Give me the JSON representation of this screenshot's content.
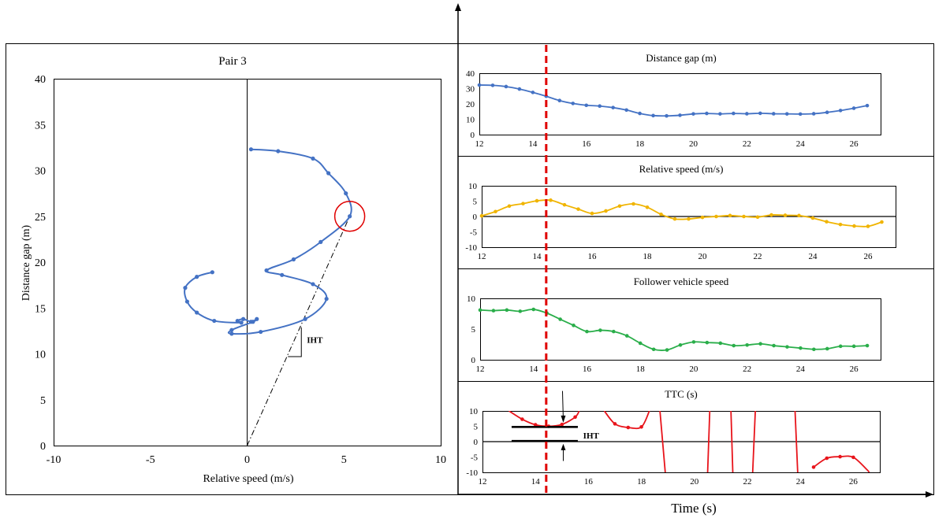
{
  "bottom_axis_label": "Time (s)",
  "colors": {
    "blue": "#4472C4",
    "yellow": "#F0B400",
    "green": "#2AAE4A",
    "red": "#E8141B",
    "marker": "#E00000"
  },
  "chart_data": [
    {
      "id": "phase",
      "type": "line",
      "title": "Pair 3",
      "xlabel": "Relative speed (m/s)",
      "ylabel": "Distance gap (m)",
      "xlim": [
        -10,
        10
      ],
      "ylim": [
        0,
        40
      ],
      "xticks": [
        -10,
        -5,
        0,
        5,
        10
      ],
      "yticks": [
        0,
        5,
        10,
        15,
        20,
        25,
        30,
        35,
        40
      ],
      "annotation": "IHT",
      "highlight": {
        "x": 5.3,
        "y": 25.0
      },
      "iht_line": [
        [
          0,
          0
        ],
        [
          5.3,
          25.0
        ]
      ],
      "series": [
        {
          "color": "#4472C4",
          "points": [
            [
              0.2,
              32.3
            ],
            [
              1.6,
              32.1
            ],
            [
              3.4,
              31.3
            ],
            [
              4.2,
              29.7
            ],
            [
              5.1,
              27.5
            ],
            [
              5.3,
              25.0
            ],
            [
              3.8,
              22.2
            ],
            [
              2.4,
              20.3
            ],
            [
              1.0,
              19.1
            ],
            [
              1.8,
              18.6
            ],
            [
              3.4,
              17.6
            ],
            [
              4.1,
              16.0
            ],
            [
              3.0,
              13.8
            ],
            [
              0.7,
              12.4
            ],
            [
              -0.8,
              12.2
            ],
            [
              -0.8,
              12.6
            ],
            [
              0.3,
              13.5
            ],
            [
              0.5,
              13.8
            ],
            [
              0.2,
              13.5
            ],
            [
              -0.2,
              13.8
            ],
            [
              -0.5,
              13.6
            ],
            [
              -0.3,
              13.4
            ],
            [
              -1.7,
              13.6
            ],
            [
              -2.6,
              14.5
            ],
            [
              -3.1,
              15.7
            ],
            [
              -3.2,
              17.2
            ],
            [
              -2.6,
              18.4
            ],
            [
              -1.8,
              18.9
            ]
          ]
        }
      ]
    },
    {
      "id": "distance",
      "type": "line",
      "title": "Distance gap (m)",
      "xlim": [
        12,
        27
      ],
      "ylim": [
        0,
        40
      ],
      "xticks": [
        12,
        14,
        16,
        18,
        20,
        22,
        24,
        26
      ],
      "yticks": [
        0,
        10,
        20,
        30,
        40
      ],
      "series": [
        {
          "color": "#4472C4",
          "points": [
            [
              12,
              32.3
            ],
            [
              12.5,
              32.1
            ],
            [
              13,
              31.3
            ],
            [
              13.5,
              29.7
            ],
            [
              14,
              27.5
            ],
            [
              14.5,
              25.0
            ],
            [
              15,
              22.2
            ],
            [
              15.5,
              20.3
            ],
            [
              16,
              19.1
            ],
            [
              16.5,
              18.6
            ],
            [
              17,
              17.6
            ],
            [
              17.5,
              16.0
            ],
            [
              18,
              13.8
            ],
            [
              18.5,
              12.4
            ],
            [
              19,
              12.2
            ],
            [
              19.5,
              12.6
            ],
            [
              20,
              13.5
            ],
            [
              20.5,
              13.8
            ],
            [
              21,
              13.5
            ],
            [
              21.5,
              13.8
            ],
            [
              22,
              13.6
            ],
            [
              22.5,
              13.9
            ],
            [
              23,
              13.6
            ],
            [
              23.5,
              13.5
            ],
            [
              24,
              13.4
            ],
            [
              24.5,
              13.6
            ],
            [
              25,
              14.5
            ],
            [
              25.5,
              15.7
            ],
            [
              26,
              17.2
            ],
            [
              26.5,
              18.9
            ]
          ]
        }
      ]
    },
    {
      "id": "relative",
      "type": "line",
      "title": "Relative speed (m/s)",
      "xlim": [
        12,
        27
      ],
      "ylim": [
        -10,
        10
      ],
      "xticks": [
        12,
        14,
        16,
        18,
        20,
        22,
        24,
        26
      ],
      "yticks": [
        -10,
        -5,
        0,
        5,
        10
      ],
      "zero_line": true,
      "series": [
        {
          "color": "#F0B400",
          "points": [
            [
              12,
              0.2
            ],
            [
              12.5,
              1.6
            ],
            [
              13,
              3.4
            ],
            [
              13.5,
              4.2
            ],
            [
              14,
              5.1
            ],
            [
              14.5,
              5.3
            ],
            [
              15,
              3.8
            ],
            [
              15.5,
              2.4
            ],
            [
              16,
              1.0
            ],
            [
              16.5,
              1.8
            ],
            [
              17,
              3.4
            ],
            [
              17.5,
              4.1
            ],
            [
              18,
              3.0
            ],
            [
              18.5,
              0.7
            ],
            [
              19,
              -0.8
            ],
            [
              19.5,
              -0.8
            ],
            [
              20,
              -0.3
            ],
            [
              20.5,
              0.0
            ],
            [
              21,
              0.3
            ],
            [
              21.5,
              0.0
            ],
            [
              22,
              -0.2
            ],
            [
              22.5,
              0.5
            ],
            [
              23,
              0.4
            ],
            [
              23.5,
              0.3
            ],
            [
              24,
              -0.5
            ],
            [
              24.5,
              -1.7
            ],
            [
              25,
              -2.6
            ],
            [
              25.5,
              -3.1
            ],
            [
              26,
              -3.2
            ],
            [
              26.5,
              -1.8
            ]
          ]
        }
      ]
    },
    {
      "id": "follower",
      "type": "line",
      "title": "Follower vehicle speed",
      "xlim": [
        12,
        27
      ],
      "ylim": [
        0,
        10
      ],
      "xticks": [
        12,
        14,
        16,
        18,
        20,
        22,
        24,
        26
      ],
      "yticks": [
        0,
        5,
        10
      ],
      "series": [
        {
          "color": "#2AAE4A",
          "points": [
            [
              12,
              8.1
            ],
            [
              12.5,
              8.0
            ],
            [
              13,
              8.1
            ],
            [
              13.5,
              7.9
            ],
            [
              14,
              8.2
            ],
            [
              14.5,
              7.6
            ],
            [
              15,
              6.6
            ],
            [
              15.5,
              5.6
            ],
            [
              16,
              4.6
            ],
            [
              16.5,
              4.8
            ],
            [
              17,
              4.6
            ],
            [
              17.5,
              3.9
            ],
            [
              18,
              2.7
            ],
            [
              18.5,
              1.7
            ],
            [
              19,
              1.6
            ],
            [
              19.5,
              2.4
            ],
            [
              20,
              2.9
            ],
            [
              20.5,
              2.8
            ],
            [
              21,
              2.7
            ],
            [
              21.5,
              2.3
            ],
            [
              22,
              2.4
            ],
            [
              22.5,
              2.6
            ],
            [
              23,
              2.3
            ],
            [
              23.5,
              2.1
            ],
            [
              24,
              1.9
            ],
            [
              24.5,
              1.7
            ],
            [
              25,
              1.8
            ],
            [
              25.5,
              2.2
            ],
            [
              26,
              2.2
            ],
            [
              26.5,
              2.3
            ]
          ]
        }
      ]
    },
    {
      "id": "ttc",
      "type": "line",
      "title": "TTC (s)",
      "xlim": [
        12,
        27
      ],
      "ylim": [
        -10,
        10
      ],
      "xticks": [
        12,
        14,
        16,
        18,
        20,
        22,
        24,
        26
      ],
      "yticks": [
        -10,
        -5,
        0,
        5,
        10
      ],
      "zero_line": true,
      "annotation": "IHT",
      "iht_bars": [
        {
          "x0": 13.1,
          "x1": 15.6,
          "y": 4.8
        },
        {
          "x0": 13.1,
          "x1": 15.6,
          "y": 0.2
        }
      ],
      "series": [
        {
          "color": "#E8141B",
          "segments": [
            {
              "points": [
                [
                  13.0,
                  10.0
                ],
                [
                  13.5,
                  7.3
                ],
                [
                  14.0,
                  5.5
                ],
                [
                  14.5,
                  5.0
                ],
                [
                  15.0,
                  5.6
                ],
                [
                  15.5,
                  8.0
                ],
                [
                  15.65,
                  10.0
                ]
              ],
              "markers": [
                [
                  13.5,
                  7.3
                ],
                [
                  14.0,
                  5.5
                ],
                [
                  14.5,
                  5.0
                ],
                [
                  15.0,
                  5.6
                ],
                [
                  15.5,
                  8.0
                ]
              ]
            },
            {
              "points": [
                [
                  16.6,
                  10.0
                ],
                [
                  17.0,
                  5.8
                ],
                [
                  17.5,
                  4.6
                ],
                [
                  18.0,
                  4.8
                ],
                [
                  18.3,
                  10.0
                ]
              ],
              "markers": [
                [
                  17.0,
                  5.8
                ],
                [
                  17.5,
                  4.6
                ],
                [
                  18.0,
                  4.8
                ]
              ]
            },
            {
              "points": [
                [
                  18.7,
                  10.0
                ],
                [
                  18.9,
                  -10.0
                ]
              ],
              "markers": []
            },
            {
              "points": [
                [
                  20.5,
                  -10.0
                ],
                [
                  20.58,
                  10.0
                ]
              ],
              "markers": []
            },
            {
              "points": [
                [
                  21.38,
                  10.0
                ],
                [
                  21.45,
                  -10.0
                ]
              ],
              "markers": []
            },
            {
              "points": [
                [
                  22.2,
                  -10.0
                ],
                [
                  22.3,
                  10.0
                ]
              ],
              "markers": []
            },
            {
              "points": [
                [
                  23.8,
                  10.0
                ],
                [
                  23.9,
                  -10.0
                ]
              ],
              "markers": []
            },
            {
              "points": [
                [
                  24.5,
                  -8.3
                ],
                [
                  25.0,
                  -5.4
                ],
                [
                  25.5,
                  -4.9
                ],
                [
                  26.0,
                  -5.1
                ],
                [
                  26.5,
                  -9.0
                ],
                [
                  26.6,
                  -10.0
                ]
              ],
              "markers": [
                [
                  24.5,
                  -8.3
                ],
                [
                  25.0,
                  -5.4
                ],
                [
                  25.5,
                  -4.9
                ],
                [
                  26.0,
                  -5.1
                ]
              ]
            }
          ]
        }
      ]
    }
  ],
  "marker_time": 14.5
}
